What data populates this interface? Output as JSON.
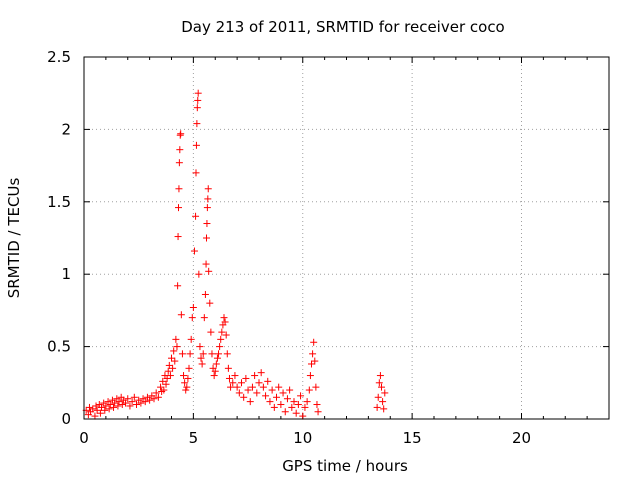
{
  "chart_data": {
    "type": "scatter",
    "title": "Day 213 of 2011, SRMTID for receiver coco",
    "xlabel": "GPS time / hours",
    "ylabel": "SRMTID / TECUs",
    "xlim": [
      0,
      24
    ],
    "ylim": [
      0,
      2.5
    ],
    "xticks": [
      0,
      5,
      10,
      15,
      20
    ],
    "yticks": [
      0,
      0.5,
      1,
      1.5,
      2,
      2.5
    ],
    "xtick_labels": [
      "0",
      "5",
      "10",
      "15",
      "20"
    ],
    "ytick_labels": [
      "0",
      "0.5",
      "1",
      "1.5",
      "2",
      "2.5"
    ],
    "grid": true,
    "marker": "+",
    "marker_color": "#ff0000",
    "series": [
      {
        "name": "SRMTID",
        "points": [
          [
            0.1,
            0.06
          ],
          [
            0.2,
            0.03
          ],
          [
            0.25,
            0.08
          ],
          [
            0.3,
            0.05
          ],
          [
            0.4,
            0.07
          ],
          [
            0.5,
            0.02
          ],
          [
            0.55,
            0.09
          ],
          [
            0.6,
            0.06
          ],
          [
            0.7,
            0.1
          ],
          [
            0.75,
            0.04
          ],
          [
            0.8,
            0.08
          ],
          [
            0.9,
            0.11
          ],
          [
            0.95,
            0.06
          ],
          [
            1.0,
            0.09
          ],
          [
            1.1,
            0.12
          ],
          [
            1.15,
            0.07
          ],
          [
            1.2,
            0.1
          ],
          [
            1.3,
            0.13
          ],
          [
            1.35,
            0.08
          ],
          [
            1.4,
            0.11
          ],
          [
            1.5,
            0.14
          ],
          [
            1.55,
            0.09
          ],
          [
            1.6,
            0.12
          ],
          [
            1.7,
            0.15
          ],
          [
            1.75,
            0.1
          ],
          [
            1.8,
            0.13
          ],
          [
            1.9,
            0.11
          ],
          [
            2.0,
            0.14
          ],
          [
            2.1,
            0.09
          ],
          [
            2.2,
            0.12
          ],
          [
            2.3,
            0.15
          ],
          [
            2.4,
            0.1
          ],
          [
            2.5,
            0.13
          ],
          [
            2.6,
            0.11
          ],
          [
            2.7,
            0.14
          ],
          [
            2.8,
            0.12
          ],
          [
            2.9,
            0.15
          ],
          [
            3.0,
            0.13
          ],
          [
            3.1,
            0.16
          ],
          [
            3.2,
            0.14
          ],
          [
            3.3,
            0.18
          ],
          [
            3.4,
            0.15
          ],
          [
            3.5,
            0.22
          ],
          [
            3.55,
            0.19
          ],
          [
            3.6,
            0.26
          ],
          [
            3.65,
            0.2
          ],
          [
            3.7,
            0.3
          ],
          [
            3.75,
            0.24
          ],
          [
            3.8,
            0.28
          ],
          [
            3.85,
            0.33
          ],
          [
            3.9,
            0.37
          ],
          [
            3.95,
            0.3
          ],
          [
            4.0,
            0.42
          ],
          [
            4.05,
            0.35
          ],
          [
            4.1,
            0.47
          ],
          [
            4.15,
            0.4
          ],
          [
            4.2,
            0.55
          ],
          [
            4.25,
            0.5
          ],
          [
            4.28,
            0.92
          ],
          [
            4.3,
            1.26
          ],
          [
            4.32,
            1.46
          ],
          [
            4.34,
            1.59
          ],
          [
            4.36,
            1.77
          ],
          [
            4.38,
            1.86
          ],
          [
            4.4,
            1.96
          ],
          [
            4.42,
            1.97
          ],
          [
            4.45,
            0.72
          ],
          [
            4.5,
            0.45
          ],
          [
            4.55,
            0.3
          ],
          [
            4.6,
            0.25
          ],
          [
            4.65,
            0.2
          ],
          [
            4.7,
            0.22
          ],
          [
            4.75,
            0.28
          ],
          [
            4.8,
            0.35
          ],
          [
            4.85,
            0.45
          ],
          [
            4.9,
            0.55
          ],
          [
            4.95,
            0.7
          ],
          [
            5.0,
            0.77
          ],
          [
            5.05,
            1.16
          ],
          [
            5.1,
            1.4
          ],
          [
            5.12,
            1.7
          ],
          [
            5.14,
            1.89
          ],
          [
            5.16,
            2.04
          ],
          [
            5.18,
            2.15
          ],
          [
            5.2,
            2.2
          ],
          [
            5.22,
            2.25
          ],
          [
            5.25,
            1.0
          ],
          [
            5.3,
            0.5
          ],
          [
            5.35,
            0.42
          ],
          [
            5.4,
            0.38
          ],
          [
            5.45,
            0.45
          ],
          [
            5.5,
            0.7
          ],
          [
            5.55,
            0.86
          ],
          [
            5.58,
            1.07
          ],
          [
            5.6,
            1.25
          ],
          [
            5.62,
            1.35
          ],
          [
            5.64,
            1.46
          ],
          [
            5.66,
            1.52
          ],
          [
            5.68,
            1.59
          ],
          [
            5.7,
            1.02
          ],
          [
            5.75,
            0.8
          ],
          [
            5.8,
            0.6
          ],
          [
            5.85,
            0.45
          ],
          [
            5.9,
            0.35
          ],
          [
            5.95,
            0.3
          ],
          [
            6.0,
            0.33
          ],
          [
            6.05,
            0.38
          ],
          [
            6.1,
            0.42
          ],
          [
            6.15,
            0.45
          ],
          [
            6.2,
            0.5
          ],
          [
            6.25,
            0.55
          ],
          [
            6.3,
            0.6
          ],
          [
            6.35,
            0.65
          ],
          [
            6.4,
            0.7
          ],
          [
            6.45,
            0.67
          ],
          [
            6.5,
            0.58
          ],
          [
            6.55,
            0.45
          ],
          [
            6.6,
            0.35
          ],
          [
            6.65,
            0.28
          ],
          [
            6.7,
            0.22
          ],
          [
            6.8,
            0.25
          ],
          [
            6.9,
            0.3
          ],
          [
            7.0,
            0.22
          ],
          [
            7.1,
            0.18
          ],
          [
            7.2,
            0.25
          ],
          [
            7.3,
            0.15
          ],
          [
            7.4,
            0.28
          ],
          [
            7.5,
            0.2
          ],
          [
            7.6,
            0.12
          ],
          [
            7.7,
            0.22
          ],
          [
            7.8,
            0.3
          ],
          [
            7.9,
            0.18
          ],
          [
            8.0,
            0.25
          ],
          [
            8.1,
            0.32
          ],
          [
            8.2,
            0.22
          ],
          [
            8.3,
            0.16
          ],
          [
            8.4,
            0.26
          ],
          [
            8.5,
            0.12
          ],
          [
            8.6,
            0.2
          ],
          [
            8.7,
            0.08
          ],
          [
            8.8,
            0.15
          ],
          [
            8.9,
            0.22
          ],
          [
            9.0,
            0.1
          ],
          [
            9.1,
            0.18
          ],
          [
            9.2,
            0.05
          ],
          [
            9.3,
            0.14
          ],
          [
            9.4,
            0.2
          ],
          [
            9.5,
            0.08
          ],
          [
            9.6,
            0.12
          ],
          [
            9.7,
            0.04
          ],
          [
            9.8,
            0.1
          ],
          [
            9.9,
            0.16
          ],
          [
            10.0,
            0.02
          ],
          [
            10.1,
            0.08
          ],
          [
            10.2,
            0.12
          ],
          [
            10.3,
            0.2
          ],
          [
            10.35,
            0.3
          ],
          [
            10.4,
            0.38
          ],
          [
            10.45,
            0.45
          ],
          [
            10.5,
            0.53
          ],
          [
            10.55,
            0.4
          ],
          [
            10.6,
            0.22
          ],
          [
            10.65,
            0.1
          ],
          [
            10.7,
            0.05
          ],
          [
            13.4,
            0.08
          ],
          [
            13.45,
            0.15
          ],
          [
            13.5,
            0.25
          ],
          [
            13.55,
            0.3
          ],
          [
            13.6,
            0.22
          ],
          [
            13.65,
            0.12
          ],
          [
            13.7,
            0.07
          ],
          [
            13.75,
            0.18
          ]
        ]
      }
    ]
  }
}
